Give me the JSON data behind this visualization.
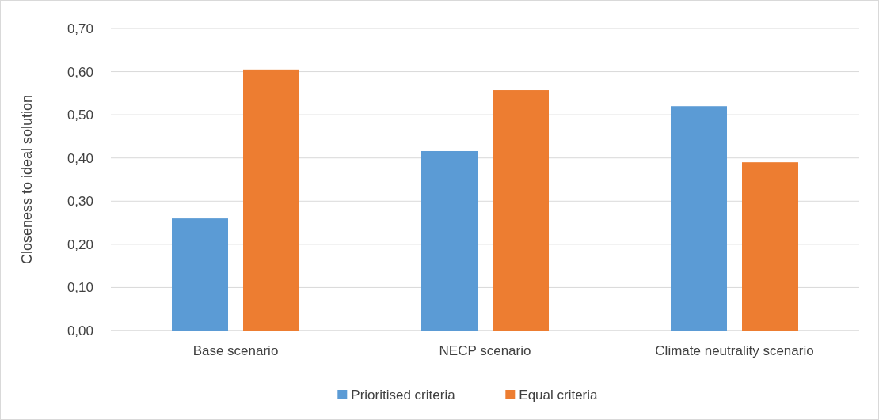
{
  "chart_data": {
    "type": "bar",
    "ylabel": "Closeness to ideal solution",
    "categories": [
      "Base scenario",
      "NECP scenario",
      "Climate neutrality scenario"
    ],
    "series": [
      {
        "name": "Prioritised criteria",
        "color": "#5b9bd5",
        "values": [
          0.26,
          0.416,
          0.52
        ]
      },
      {
        "name": "Equal criteria",
        "color": "#ed7d31",
        "values": [
          0.605,
          0.557,
          0.39
        ]
      }
    ],
    "ylim": [
      0,
      0.7
    ],
    "yticks": [
      {
        "value": 0,
        "label": "0,00"
      },
      {
        "value": 0.1,
        "label": "0,10"
      },
      {
        "value": 0.2,
        "label": "0,20"
      },
      {
        "value": 0.3,
        "label": "0,30"
      },
      {
        "value": 0.4,
        "label": "0,40"
      },
      {
        "value": 0.5,
        "label": "0,50"
      },
      {
        "value": 0.6,
        "label": "0,60"
      },
      {
        "value": 0.7,
        "label": "0,70"
      }
    ],
    "grid": "y",
    "legend": "bottom"
  }
}
